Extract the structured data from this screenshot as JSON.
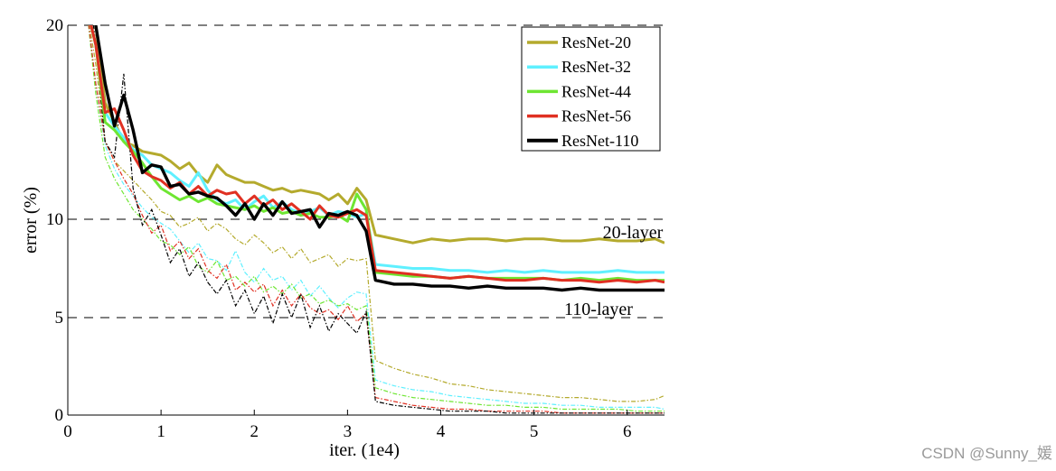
{
  "chart_data": {
    "type": "line",
    "xlabel": "iter. (1e4)",
    "ylabel": "error (%)",
    "xlim": [
      0,
      6.4
    ],
    "ylim": [
      0,
      20
    ],
    "xticks": [
      "0",
      "1",
      "2",
      "3",
      "4",
      "5",
      "6"
    ],
    "yticks": [
      "0",
      "5",
      "10",
      "20"
    ],
    "ytick_values": [
      0,
      5,
      10,
      20
    ],
    "grid": "dashed horizontal lines at 5, 10, 20",
    "legend_position": "top-right",
    "annotations": [
      "20-layer",
      "110-layer"
    ],
    "series": [
      {
        "name": "ResNet-20",
        "color": "#b4aa2d",
        "test": {
          "x": [
            0.2,
            0.3,
            0.4,
            0.5,
            0.6,
            0.7,
            0.8,
            0.9,
            1.0,
            1.1,
            1.2,
            1.3,
            1.4,
            1.5,
            1.6,
            1.7,
            1.8,
            1.9,
            2.0,
            2.1,
            2.2,
            2.3,
            2.4,
            2.5,
            2.6,
            2.7,
            2.8,
            2.9,
            3.0,
            3.1,
            3.2,
            3.3,
            3.5,
            3.7,
            3.9,
            4.1,
            4.3,
            4.5,
            4.7,
            4.9,
            5.1,
            5.3,
            5.5,
            5.7,
            5.9,
            6.1,
            6.3,
            6.4
          ],
          "y": [
            21,
            20,
            16,
            15,
            14,
            13.8,
            13.5,
            13.4,
            13.3,
            13.0,
            12.6,
            12.9,
            12.3,
            11.9,
            12.8,
            12.3,
            12.1,
            11.9,
            11.9,
            11.7,
            11.5,
            11.6,
            11.4,
            11.5,
            11.4,
            11.3,
            11.0,
            11.3,
            10.8,
            11.6,
            11.0,
            9.2,
            9.0,
            8.8,
            9.0,
            8.9,
            9.0,
            9.0,
            8.9,
            9.0,
            9.0,
            8.9,
            8.9,
            9.0,
            8.9,
            8.9,
            9.0,
            8.8
          ]
        },
        "train": {
          "x": [
            0.2,
            0.3,
            0.4,
            0.5,
            0.6,
            0.7,
            0.8,
            0.9,
            1.0,
            1.1,
            1.2,
            1.3,
            1.4,
            1.5,
            1.6,
            1.7,
            1.8,
            1.9,
            2.0,
            2.1,
            2.2,
            2.3,
            2.4,
            2.5,
            2.6,
            2.7,
            2.8,
            2.9,
            3.0,
            3.1,
            3.2,
            3.3,
            3.5,
            3.7,
            3.9,
            4.1,
            4.3,
            4.5,
            4.7,
            4.9,
            5.1,
            5.3,
            5.5,
            5.7,
            5.9,
            6.1,
            6.3,
            6.4
          ],
          "y": [
            21,
            18,
            14,
            13,
            12.5,
            12.0,
            11.5,
            11.0,
            10.4,
            10.2,
            9.6,
            9.8,
            10.1,
            9.4,
            9.8,
            9.5,
            9.0,
            8.7,
            9.2,
            8.8,
            8.3,
            8.6,
            8.0,
            8.5,
            7.8,
            8.0,
            8.2,
            7.6,
            8.0,
            7.9,
            8.0,
            2.8,
            2.4,
            2.1,
            1.9,
            1.6,
            1.5,
            1.3,
            1.2,
            1.1,
            1.0,
            0.9,
            0.9,
            0.8,
            0.7,
            0.7,
            0.8,
            1.0
          ]
        }
      },
      {
        "name": "ResNet-32",
        "color": "#5ff0ff",
        "test": {
          "x": [
            0.2,
            0.3,
            0.4,
            0.5,
            0.6,
            0.7,
            0.8,
            0.9,
            1.0,
            1.1,
            1.2,
            1.3,
            1.4,
            1.5,
            1.6,
            1.7,
            1.8,
            1.9,
            2.0,
            2.1,
            2.2,
            2.3,
            2.4,
            2.5,
            2.6,
            2.7,
            2.8,
            2.9,
            3.0,
            3.1,
            3.2,
            3.3,
            3.5,
            3.7,
            3.9,
            4.1,
            4.3,
            4.5,
            4.7,
            4.9,
            5.1,
            5.3,
            5.5,
            5.7,
            5.9,
            6.1,
            6.3,
            6.4
          ],
          "y": [
            21,
            19,
            15.5,
            14.8,
            14.2,
            13.6,
            13.3,
            12.8,
            12.6,
            12.4,
            12.0,
            11.7,
            12.4,
            11.5,
            11.0,
            10.8,
            11.0,
            10.5,
            10.9,
            11.2,
            10.6,
            10.9,
            10.5,
            10.3,
            10.4,
            10.6,
            10.2,
            10.4,
            10.3,
            10.1,
            10.3,
            7.7,
            7.6,
            7.5,
            7.5,
            7.4,
            7.4,
            7.3,
            7.4,
            7.3,
            7.4,
            7.3,
            7.3,
            7.3,
            7.4,
            7.3,
            7.3,
            7.3
          ]
        },
        "train": {
          "x": [
            0.2,
            0.3,
            0.4,
            0.5,
            0.6,
            0.7,
            0.8,
            0.9,
            1.0,
            1.1,
            1.2,
            1.3,
            1.4,
            1.5,
            1.6,
            1.7,
            1.8,
            1.9,
            2.0,
            2.1,
            2.2,
            2.3,
            2.4,
            2.5,
            2.6,
            2.7,
            2.8,
            2.9,
            3.0,
            3.1,
            3.2,
            3.3,
            3.5,
            3.7,
            3.9,
            4.1,
            4.3,
            4.5,
            4.7,
            4.9,
            5.1,
            5.3,
            5.5,
            5.7,
            5.9,
            6.1,
            6.3,
            6.4
          ],
          "y": [
            21,
            17,
            13.8,
            12.6,
            11.8,
            11.2,
            10.6,
            10.1,
            9.8,
            9.5,
            8.9,
            8.3,
            8.8,
            8.0,
            7.9,
            7.4,
            8.4,
            7.3,
            6.8,
            7.5,
            6.9,
            7.1,
            6.4,
            6.9,
            6.1,
            6.6,
            6.0,
            5.5,
            6.0,
            6.3,
            6.2,
            1.8,
            1.5,
            1.3,
            1.2,
            1.0,
            0.9,
            0.8,
            0.7,
            0.6,
            0.6,
            0.5,
            0.5,
            0.4,
            0.4,
            0.4,
            0.4,
            0.3
          ]
        }
      },
      {
        "name": "ResNet-44",
        "color": "#6ee632",
        "test": {
          "x": [
            0.2,
            0.3,
            0.4,
            0.5,
            0.6,
            0.7,
            0.8,
            0.9,
            1.0,
            1.1,
            1.2,
            1.3,
            1.4,
            1.5,
            1.6,
            1.7,
            1.8,
            1.9,
            2.0,
            2.1,
            2.2,
            2.3,
            2.4,
            2.5,
            2.6,
            2.7,
            2.8,
            2.9,
            3.0,
            3.1,
            3.2,
            3.3,
            3.5,
            3.7,
            3.9,
            4.1,
            4.3,
            4.5,
            4.7,
            4.9,
            5.1,
            5.3,
            5.5,
            5.7,
            5.9,
            6.1,
            6.3,
            6.4
          ],
          "y": [
            21,
            19,
            15,
            14.6,
            14.0,
            13.5,
            12.9,
            12.2,
            11.6,
            11.3,
            11.0,
            11.2,
            10.9,
            11.1,
            10.8,
            10.7,
            10.6,
            10.5,
            10.7,
            10.4,
            10.6,
            10.3,
            10.4,
            10.2,
            10.3,
            10.1,
            10.1,
            10.2,
            9.9,
            11.3,
            10.5,
            7.3,
            7.2,
            7.1,
            7.1,
            7.0,
            7.1,
            7.0,
            7.0,
            7.0,
            7.0,
            6.9,
            7.0,
            6.9,
            7.0,
            6.9,
            6.9,
            6.9
          ]
        },
        "train": {
          "x": [
            0.2,
            0.3,
            0.4,
            0.5,
            0.6,
            0.7,
            0.8,
            0.9,
            1.0,
            1.1,
            1.2,
            1.3,
            1.4,
            1.5,
            1.6,
            1.7,
            1.8,
            1.9,
            2.0,
            2.1,
            2.2,
            2.3,
            2.4,
            2.5,
            2.6,
            2.7,
            2.8,
            2.9,
            3.0,
            3.1,
            3.2,
            3.3,
            3.5,
            3.7,
            3.9,
            4.1,
            4.3,
            4.5,
            4.7,
            4.9,
            5.1,
            5.3,
            5.5,
            5.7,
            5.9,
            6.1,
            6.3,
            6.4
          ],
          "y": [
            21,
            16.5,
            13.2,
            12.1,
            11.3,
            10.5,
            10.0,
            9.5,
            8.9,
            8.7,
            8.2,
            8.6,
            7.6,
            7.3,
            7.9,
            6.9,
            7.1,
            6.6,
            7.1,
            6.3,
            6.6,
            6.2,
            6.7,
            6.0,
            6.2,
            5.7,
            5.9,
            5.6,
            5.7,
            5.4,
            5.6,
            1.4,
            1.1,
            0.9,
            0.8,
            0.7,
            0.6,
            0.5,
            0.5,
            0.4,
            0.4,
            0.3,
            0.3,
            0.3,
            0.3,
            0.2,
            0.2,
            0.2
          ]
        }
      },
      {
        "name": "ResNet-56",
        "color": "#e03022",
        "test": {
          "x": [
            0.2,
            0.3,
            0.4,
            0.5,
            0.6,
            0.7,
            0.8,
            0.9,
            1.0,
            1.1,
            1.2,
            1.3,
            1.4,
            1.5,
            1.6,
            1.7,
            1.8,
            1.9,
            2.0,
            2.1,
            2.2,
            2.3,
            2.4,
            2.5,
            2.6,
            2.7,
            2.8,
            2.9,
            3.0,
            3.1,
            3.2,
            3.3,
            3.5,
            3.7,
            3.9,
            4.1,
            4.3,
            4.5,
            4.7,
            4.9,
            5.1,
            5.3,
            5.5,
            5.7,
            5.9,
            6.1,
            6.3,
            6.4
          ],
          "y": [
            21,
            19,
            15.5,
            15.7,
            14.6,
            13.3,
            12.5,
            12.2,
            12.0,
            11.6,
            11.9,
            11.3,
            11.7,
            11.2,
            11.5,
            11.3,
            11.4,
            10.8,
            11.2,
            10.7,
            11.0,
            10.5,
            10.8,
            10.4,
            10.0,
            10.7,
            10.2,
            10.1,
            10.3,
            10.5,
            10.2,
            7.4,
            7.3,
            7.2,
            7.1,
            7.0,
            7.1,
            7.0,
            6.9,
            6.9,
            7.0,
            6.9,
            6.9,
            6.8,
            6.9,
            6.8,
            6.9,
            6.8
          ]
        },
        "train": {
          "x": [
            0.2,
            0.3,
            0.4,
            0.5,
            0.6,
            0.7,
            0.8,
            0.9,
            1.0,
            1.1,
            1.2,
            1.3,
            1.4,
            1.5,
            1.6,
            1.7,
            1.8,
            1.9,
            2.0,
            2.1,
            2.2,
            2.3,
            2.4,
            2.5,
            2.6,
            2.7,
            2.8,
            2.9,
            3.0,
            3.1,
            3.2,
            3.3,
            3.5,
            3.7,
            3.9,
            4.1,
            4.3,
            4.5,
            4.7,
            4.9,
            5.1,
            5.3,
            5.5,
            5.7,
            5.9,
            6.1,
            6.3,
            6.4
          ],
          "y": [
            21,
            17,
            14,
            13,
            12.1,
            11.3,
            10.2,
            9.3,
            9.7,
            8.4,
            8.9,
            8.0,
            8.5,
            7.4,
            7.0,
            7.7,
            6.4,
            6.8,
            6.3,
            6.7,
            5.6,
            6.4,
            5.6,
            6.2,
            5.5,
            5.2,
            5.4,
            4.9,
            5.6,
            4.8,
            5.2,
            0.9,
            0.7,
            0.5,
            0.4,
            0.3,
            0.3,
            0.2,
            0.2,
            0.2,
            0.2,
            0.1,
            0.1,
            0.1,
            0.1,
            0.1,
            0.1,
            0.1
          ]
        }
      },
      {
        "name": "ResNet-110",
        "color": "#000000",
        "test": {
          "x": [
            0.25,
            0.3,
            0.4,
            0.5,
            0.6,
            0.7,
            0.8,
            0.9,
            1.0,
            1.1,
            1.2,
            1.3,
            1.4,
            1.5,
            1.6,
            1.7,
            1.8,
            1.9,
            2.0,
            2.1,
            2.2,
            2.3,
            2.4,
            2.5,
            2.6,
            2.7,
            2.8,
            2.9,
            3.0,
            3.1,
            3.2,
            3.3,
            3.5,
            3.7,
            3.9,
            4.1,
            4.3,
            4.5,
            4.7,
            4.9,
            5.1,
            5.3,
            5.5,
            5.7,
            5.9,
            6.1,
            6.3,
            6.4
          ],
          "y": [
            21,
            20,
            17.0,
            14.8,
            16.4,
            14.6,
            12.4,
            12.8,
            12.7,
            11.7,
            11.8,
            11.3,
            11.4,
            11.2,
            11.1,
            10.7,
            10.2,
            10.8,
            10.0,
            10.8,
            10.2,
            10.9,
            10.3,
            10.4,
            10.5,
            9.6,
            10.3,
            10.2,
            10.4,
            10.2,
            9.4,
            6.9,
            6.7,
            6.7,
            6.6,
            6.6,
            6.5,
            6.6,
            6.5,
            6.5,
            6.5,
            6.4,
            6.5,
            6.4,
            6.4,
            6.4,
            6.4,
            6.4
          ]
        },
        "train": {
          "x": [
            0.25,
            0.3,
            0.4,
            0.5,
            0.6,
            0.7,
            0.8,
            0.9,
            1.0,
            1.1,
            1.2,
            1.3,
            1.4,
            1.5,
            1.6,
            1.7,
            1.8,
            1.9,
            2.0,
            2.1,
            2.2,
            2.3,
            2.4,
            2.5,
            2.6,
            2.7,
            2.8,
            2.9,
            3.0,
            3.1,
            3.2,
            3.3,
            3.5,
            3.7,
            3.9,
            4.1,
            4.3,
            4.5,
            4.7,
            4.9,
            5.1,
            5.3,
            5.5,
            5.7,
            5.9,
            6.1,
            6.3,
            6.4
          ],
          "y": [
            21,
            19,
            14.0,
            13.2,
            17.5,
            11.6,
            9.7,
            10.5,
            9.2,
            7.8,
            8.5,
            7.1,
            7.8,
            6.8,
            6.2,
            6.9,
            5.6,
            6.4,
            5.2,
            6.1,
            4.7,
            6.2,
            5.0,
            6.2,
            4.5,
            5.6,
            4.3,
            5.2,
            4.7,
            4.2,
            5.3,
            0.7,
            0.5,
            0.4,
            0.3,
            0.2,
            0.2,
            0.2,
            0.1,
            0.1,
            0.1,
            0.1,
            0.1,
            0.1,
            0.1,
            0.1,
            0.1,
            0.1
          ]
        }
      }
    ]
  },
  "watermark": "CSDN @Sunny_媛"
}
